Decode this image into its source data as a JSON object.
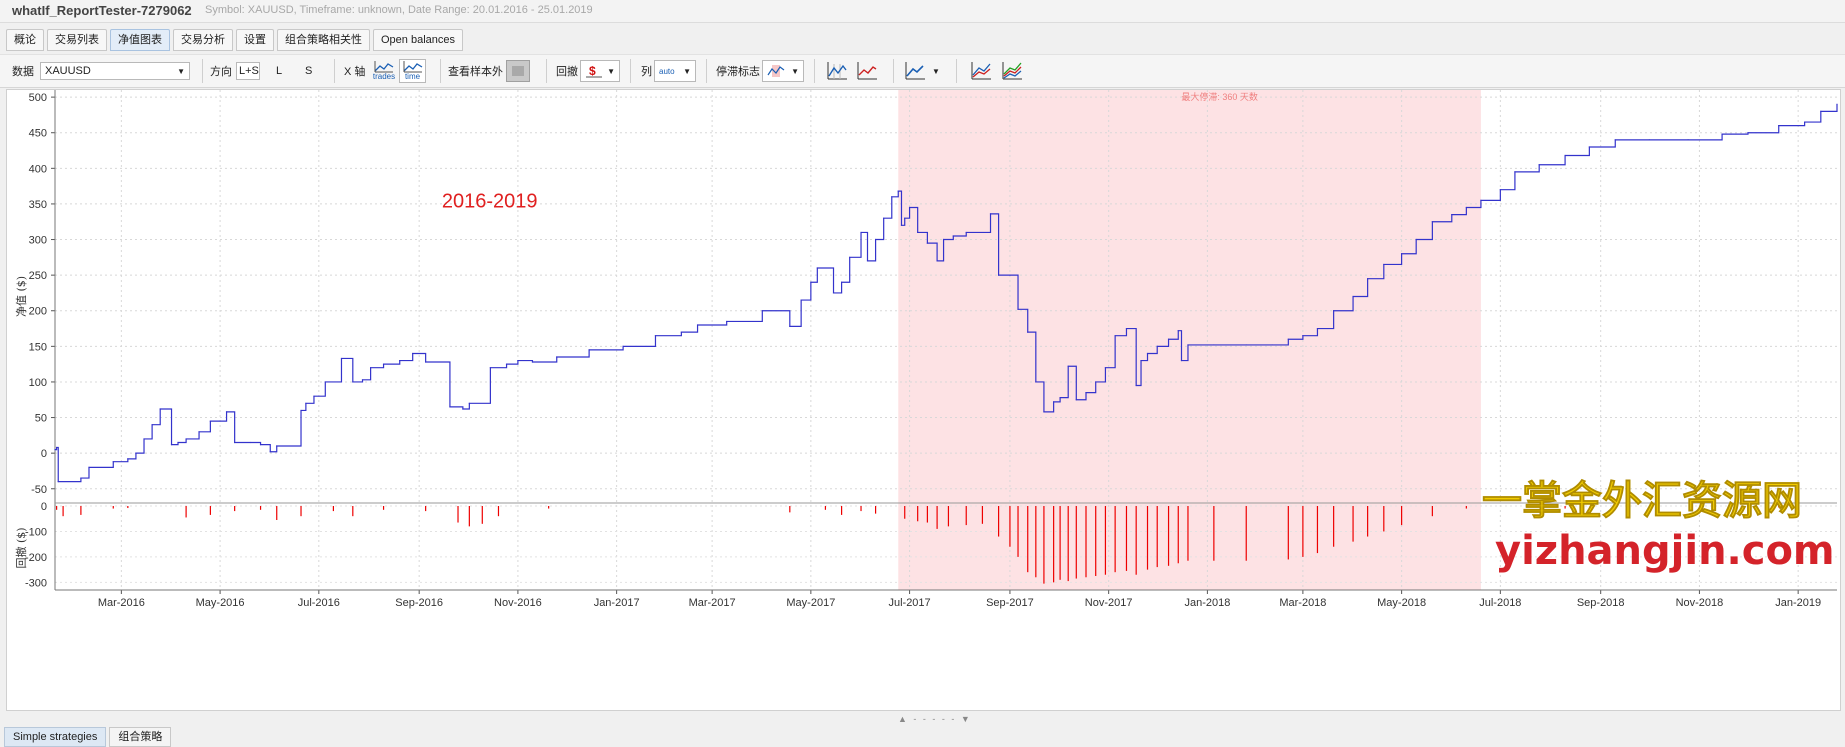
{
  "window": {
    "title": "whatIf_ReportTester-7279062",
    "meta": "Symbol: XAUUSD, Timeframe: unknown, Date Range: 20.01.2016 - 25.01.2019"
  },
  "tabs": [
    {
      "label": "概论"
    },
    {
      "label": "交易列表"
    },
    {
      "label": "净值图表",
      "active": true
    },
    {
      "label": "交易分析"
    },
    {
      "label": "设置"
    },
    {
      "label": "组合策略相关性"
    },
    {
      "label": "Open balances"
    }
  ],
  "toolbar": {
    "data_label": "数据",
    "data_value": "XAUUSD",
    "direction_label": "方向",
    "dir_ls": "L+S",
    "dir_l": "L",
    "dir_s": "S",
    "xaxis_label": "X 轴",
    "x_trades": "trades",
    "x_time": "time",
    "sample_label": "查看样本外",
    "drawdown_label": "回撤",
    "column_label": "列",
    "column_auto": "auto",
    "stagnation_label": "停滞标志"
  },
  "chart_data": {
    "type": "line",
    "title": "",
    "annotation": "2016-2019",
    "shaded_label": "最大停滞: 360 天数",
    "shaded_range": [
      "2017-06-24",
      "2018-06-19"
    ],
    "ylabel": "净值 ($)",
    "ylim": [
      -70,
      510
    ],
    "yticks": [
      -50,
      0,
      50,
      100,
      150,
      200,
      250,
      300,
      350,
      400,
      450,
      500
    ],
    "xlim": [
      "2016-01-20",
      "2019-01-25"
    ],
    "xticks": [
      {
        "label": "Mar-2016",
        "date": "2016-03-01"
      },
      {
        "label": "May-2016",
        "date": "2016-05-01"
      },
      {
        "label": "Jul-2016",
        "date": "2016-07-01"
      },
      {
        "label": "Sep-2016",
        "date": "2016-09-01"
      },
      {
        "label": "Nov-2016",
        "date": "2016-11-01"
      },
      {
        "label": "Jan-2017",
        "date": "2017-01-01"
      },
      {
        "label": "Mar-2017",
        "date": "2017-03-01"
      },
      {
        "label": "May-2017",
        "date": "2017-05-01"
      },
      {
        "label": "Jul-2017",
        "date": "2017-07-01"
      },
      {
        "label": "Sep-2017",
        "date": "2017-09-01"
      },
      {
        "label": "Nov-2017",
        "date": "2017-11-01"
      },
      {
        "label": "Jan-2018",
        "date": "2018-01-01"
      },
      {
        "label": "Mar-2018",
        "date": "2018-03-01"
      },
      {
        "label": "May-2018",
        "date": "2018-05-01"
      },
      {
        "label": "Jul-2018",
        "date": "2018-07-01"
      },
      {
        "label": "Sep-2018",
        "date": "2018-09-01"
      },
      {
        "label": "Nov-2018",
        "date": "2018-11-01"
      },
      {
        "label": "Jan-2019",
        "date": "2019-01-01"
      }
    ],
    "x": [
      "2016-01-20",
      "2016-01-21",
      "2016-01-22",
      "2016-02-05",
      "2016-02-10",
      "2016-02-25",
      "2016-03-05",
      "2016-03-10",
      "2016-03-15",
      "2016-03-20",
      "2016-03-25",
      "2016-04-01",
      "2016-04-05",
      "2016-04-10",
      "2016-04-18",
      "2016-04-25",
      "2016-05-05",
      "2016-05-10",
      "2016-05-20",
      "2016-05-26",
      "2016-06-01",
      "2016-06-05",
      "2016-06-20",
      "2016-06-23",
      "2016-06-28",
      "2016-07-05",
      "2016-07-15",
      "2016-07-22",
      "2016-07-28",
      "2016-08-02",
      "2016-08-10",
      "2016-08-20",
      "2016-08-28",
      "2016-09-05",
      "2016-09-20",
      "2016-09-28",
      "2016-10-02",
      "2016-10-15",
      "2016-10-25",
      "2016-11-01",
      "2016-11-10",
      "2016-11-25",
      "2016-12-15",
      "2017-01-05",
      "2017-01-25",
      "2017-02-10",
      "2017-02-20",
      "2017-03-10",
      "2017-04-01",
      "2017-04-18",
      "2017-04-25",
      "2017-05-01",
      "2017-05-05",
      "2017-05-15",
      "2017-05-20",
      "2017-05-25",
      "2017-06-01",
      "2017-06-05",
      "2017-06-10",
      "2017-06-15",
      "2017-06-20",
      "2017-06-24",
      "2017-06-26",
      "2017-06-28",
      "2017-07-01",
      "2017-07-06",
      "2017-07-12",
      "2017-07-18",
      "2017-07-22",
      "2017-07-28",
      "2017-08-05",
      "2017-08-20",
      "2017-08-25",
      "2017-09-01",
      "2017-09-06",
      "2017-09-12",
      "2017-09-17",
      "2017-09-22",
      "2017-09-28",
      "2017-10-02",
      "2017-10-07",
      "2017-10-12",
      "2017-10-18",
      "2017-10-24",
      "2017-10-30",
      "2017-11-05",
      "2017-11-12",
      "2017-11-18",
      "2017-11-21",
      "2017-11-25",
      "2017-12-01",
      "2017-12-08",
      "2017-12-14",
      "2017-12-16",
      "2017-12-20",
      "2018-01-05",
      "2018-01-25",
      "2018-02-10",
      "2018-02-20",
      "2018-03-01",
      "2018-03-10",
      "2018-03-20",
      "2018-04-01",
      "2018-04-10",
      "2018-04-20",
      "2018-05-01",
      "2018-05-10",
      "2018-05-20",
      "2018-06-01",
      "2018-06-10",
      "2018-06-19",
      "2018-07-01",
      "2018-07-10",
      "2018-07-25",
      "2018-08-10",
      "2018-08-25",
      "2018-09-10",
      "2018-10-01",
      "2018-10-25",
      "2018-11-15",
      "2018-12-01",
      "2018-12-20",
      "2019-01-05",
      "2019-01-15",
      "2019-01-25"
    ],
    "y": [
      5,
      8,
      -40,
      -35,
      -20,
      -12,
      -8,
      0,
      20,
      40,
      62,
      12,
      15,
      20,
      30,
      45,
      58,
      15,
      15,
      12,
      2,
      10,
      60,
      70,
      80,
      100,
      133,
      100,
      103,
      120,
      125,
      130,
      140,
      128,
      65,
      62,
      70,
      120,
      125,
      130,
      128,
      135,
      145,
      150,
      165,
      170,
      180,
      185,
      200,
      178,
      215,
      240,
      260,
      225,
      240,
      275,
      310,
      270,
      300,
      330,
      360,
      368,
      320,
      330,
      345,
      310,
      295,
      270,
      300,
      305,
      310,
      336,
      250,
      250,
      202,
      170,
      100,
      58,
      72,
      78,
      122,
      75,
      85,
      100,
      120,
      165,
      175,
      95,
      130,
      140,
      150,
      160,
      172,
      130,
      152,
      152,
      152,
      152,
      160,
      165,
      175,
      200,
      220,
      245,
      265,
      280,
      300,
      325,
      335,
      345,
      355,
      370,
      395,
      405,
      418,
      430,
      440,
      440,
      440,
      448,
      450,
      460,
      465,
      480,
      490
    ],
    "drawdown_panel": {
      "ylabel": "回撤 ($)",
      "ylim": [
        -330,
        0
      ],
      "yticks": [
        0,
        -100,
        -200,
        -300
      ],
      "bars": [
        [
          "2016-01-21",
          -15
        ],
        [
          "2016-01-25",
          -40
        ],
        [
          "2016-02-05",
          -35
        ],
        [
          "2016-02-25",
          -10
        ],
        [
          "2016-03-05",
          -8
        ],
        [
          "2016-04-10",
          -45
        ],
        [
          "2016-04-25",
          -35
        ],
        [
          "2016-05-10",
          -20
        ],
        [
          "2016-05-26",
          -15
        ],
        [
          "2016-06-05",
          -55
        ],
        [
          "2016-06-20",
          -40
        ],
        [
          "2016-07-10",
          -20
        ],
        [
          "2016-07-22",
          -40
        ],
        [
          "2016-08-10",
          -15
        ],
        [
          "2016-09-05",
          -20
        ],
        [
          "2016-09-25",
          -65
        ],
        [
          "2016-10-02",
          -80
        ],
        [
          "2016-10-10",
          -70
        ],
        [
          "2016-10-20",
          -40
        ],
        [
          "2016-11-20",
          -10
        ],
        [
          "2017-04-18",
          -25
        ],
        [
          "2017-05-10",
          -15
        ],
        [
          "2017-05-20",
          -35
        ],
        [
          "2017-06-01",
          -20
        ],
        [
          "2017-06-10",
          -30
        ],
        [
          "2017-06-28",
          -50
        ],
        [
          "2017-07-06",
          -60
        ],
        [
          "2017-07-12",
          -65
        ],
        [
          "2017-07-18",
          -90
        ],
        [
          "2017-07-25",
          -80
        ],
        [
          "2017-08-05",
          -75
        ],
        [
          "2017-08-15",
          -70
        ],
        [
          "2017-08-25",
          -120
        ],
        [
          "2017-09-01",
          -160
        ],
        [
          "2017-09-06",
          -200
        ],
        [
          "2017-09-12",
          -260
        ],
        [
          "2017-09-17",
          -280
        ],
        [
          "2017-09-22",
          -305
        ],
        [
          "2017-09-28",
          -300
        ],
        [
          "2017-10-02",
          -290
        ],
        [
          "2017-10-07",
          -295
        ],
        [
          "2017-10-12",
          -285
        ],
        [
          "2017-10-18",
          -280
        ],
        [
          "2017-10-24",
          -275
        ],
        [
          "2017-10-30",
          -270
        ],
        [
          "2017-11-05",
          -260
        ],
        [
          "2017-11-12",
          -255
        ],
        [
          "2017-11-18",
          -270
        ],
        [
          "2017-11-25",
          -250
        ],
        [
          "2017-12-01",
          -240
        ],
        [
          "2017-12-08",
          -235
        ],
        [
          "2017-12-14",
          -225
        ],
        [
          "2017-12-20",
          -215
        ],
        [
          "2018-01-05",
          -215
        ],
        [
          "2018-01-25",
          -215
        ],
        [
          "2018-02-20",
          -210
        ],
        [
          "2018-03-01",
          -200
        ],
        [
          "2018-03-10",
          -185
        ],
        [
          "2018-03-20",
          -160
        ],
        [
          "2018-04-01",
          -140
        ],
        [
          "2018-04-10",
          -120
        ],
        [
          "2018-04-20",
          -100
        ],
        [
          "2018-05-01",
          -75
        ],
        [
          "2018-05-20",
          -40
        ],
        [
          "2018-06-10",
          -10
        ],
        [
          "2018-08-10",
          -10
        ],
        [
          "2018-10-01",
          -8
        ],
        [
          "2018-12-20",
          -6
        ]
      ]
    }
  },
  "watermark": {
    "line1": "一掌金外汇资源网",
    "line2": "yizhangjin.com"
  },
  "splitter": "▲ - - - - - ▼",
  "bottom_tabs": [
    {
      "label": "Simple strategies",
      "active": true
    },
    {
      "label": "组合策略"
    }
  ],
  "colors": {
    "equity_line": "#3333cc",
    "shaded": "#fde2e4",
    "drawdown": "#ee0000",
    "annotation": "#e02020",
    "watermark1": "#f1cc00",
    "watermark2": "#d4232a"
  }
}
